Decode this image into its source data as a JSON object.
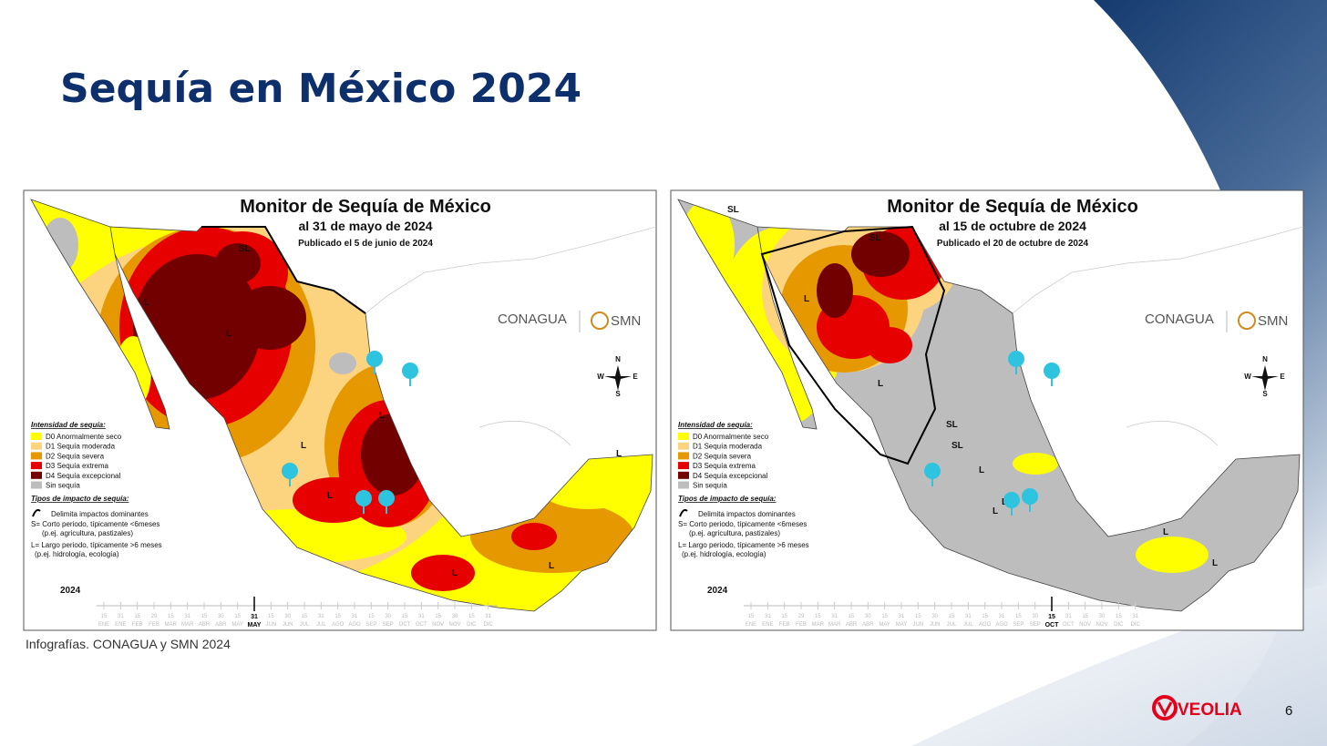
{
  "slide": {
    "title": "Sequía en México 2024",
    "caption": "Infografías. CONAGUA y SMN 2024",
    "brand": "VEOLIA",
    "page_number": "6"
  },
  "maps": [
    {
      "title": "Monitor de Sequía de México",
      "date": "al 31 de mayo de 2024",
      "published": "Publicado el 5 de junio de 2024",
      "logos": [
        "CONAGUA",
        "SMN"
      ],
      "compass": [
        "N",
        "W",
        "E",
        "S"
      ],
      "legend_heading": "Intensidad de sequía:",
      "legend": [
        {
          "label": "D0 Anormalmente seco",
          "color": "#ffff00"
        },
        {
          "label": "D1 Sequía moderada",
          "color": "#fcd37f"
        },
        {
          "label": "D2 Sequía severa",
          "color": "#e69800"
        },
        {
          "label": "D3 Sequía extrema",
          "color": "#e60000"
        },
        {
          "label": "D4 Sequía excepcional",
          "color": "#730000"
        },
        {
          "label": "Sin sequía",
          "color": "#bdbdbd"
        }
      ],
      "impact_heading": "Tipos de impacto de sequía:",
      "impact": [
        "Delimita impactos dominantes",
        "S= Corto periodo, típicamente <6meses",
        "(p.ej. agricultura, pastizales)",
        "L= Largo periodo, típicamente >6 meses",
        "(p.ej. hidrología, ecología)"
      ],
      "region_labels": [
        "SL",
        "L",
        "L",
        "L",
        "L",
        "L",
        "L",
        "L",
        "L"
      ],
      "year": "2024",
      "days": [
        "15",
        "31",
        "15",
        "29",
        "15",
        "31",
        "15",
        "30",
        "15",
        "31",
        "15",
        "30",
        "15",
        "31",
        "15",
        "31",
        "15",
        "30",
        "15",
        "31",
        "15",
        "30",
        "15",
        "31"
      ],
      "months": [
        "ENE",
        "ENE",
        "FEB",
        "FEB",
        "MAR",
        "MAR",
        "ABR",
        "ABR",
        "MAY",
        "MAY",
        "JUN",
        "JUN",
        "JUL",
        "JUL",
        "AGO",
        "AGO",
        "SEP",
        "SEP",
        "OCT",
        "OCT",
        "NOV",
        "NOV",
        "DIC",
        "DIC"
      ],
      "current_day": "31",
      "current_month": "MAY"
    },
    {
      "title": "Monitor de Sequía de México",
      "date": "al 15 de octubre de 2024",
      "published": "Publicado el 20 de octubre de 2024",
      "logos": [
        "CONAGUA",
        "SMN"
      ],
      "compass": [
        "N",
        "W",
        "E",
        "S"
      ],
      "legend_heading": "Intensidad de sequía:",
      "legend": [
        {
          "label": "D0 Anormalmente seco",
          "color": "#ffff00"
        },
        {
          "label": "D1 Sequía moderada",
          "color": "#fcd37f"
        },
        {
          "label": "D2 Sequía severa",
          "color": "#e69800"
        },
        {
          "label": "D3 Sequía extrema",
          "color": "#e60000"
        },
        {
          "label": "D4 Sequía excepcional",
          "color": "#730000"
        },
        {
          "label": "Sin sequía",
          "color": "#bdbdbd"
        }
      ],
      "impact_heading": "Tipos de impacto de sequía:",
      "impact": [
        "Delimita impactos dominantes",
        "S= Corto periodo, típicamente <6meses",
        "(p.ej. agricultura, pastizales)",
        "L= Largo periodo, típicamente >6 meses",
        "(p.ej. hidrología, ecología)"
      ],
      "region_labels": [
        "SL",
        "SL",
        "L",
        "L",
        "SL",
        "SL",
        "L",
        "L",
        "L",
        "L",
        "L"
      ],
      "year": "2024",
      "days": [
        "15",
        "31",
        "15",
        "29",
        "15",
        "31",
        "15",
        "30",
        "15",
        "31",
        "15",
        "30",
        "15",
        "31",
        "15",
        "31",
        "15",
        "30",
        "15",
        "31",
        "15",
        "30",
        "15",
        "31"
      ],
      "months": [
        "ENE",
        "ENE",
        "FEB",
        "FEB",
        "MAR",
        "MAR",
        "ABR",
        "ABR",
        "MAY",
        "MAY",
        "JUN",
        "JUN",
        "JUL",
        "JUL",
        "AGO",
        "AGO",
        "SEP",
        "SEP",
        "OCT",
        "OCT",
        "NOV",
        "NOV",
        "DIC",
        "DIC"
      ],
      "current_day": "15",
      "current_month": "OCT"
    }
  ]
}
